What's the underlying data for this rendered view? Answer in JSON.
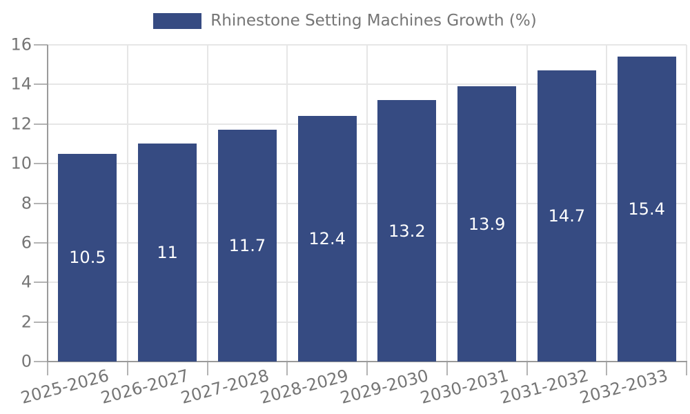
{
  "legend": {
    "label": "Rhinestone Setting Machines Growth (%)"
  },
  "colors": {
    "bar": "#364b82",
    "value_label": "#ffffff",
    "legend_text": "#757575",
    "tick_text": "#757575",
    "grid": "#e6e6e6",
    "axis": "#9a9a9a",
    "tick_mark": "#b3b3b3",
    "background": "#ffffff"
  },
  "chart_data": {
    "type": "bar",
    "title": "Rhinestone Setting Machines Growth (%)",
    "categories": [
      "2025-2026",
      "2026-2027",
      "2027-2028",
      "2028-2029",
      "2029-2030",
      "2030-2031",
      "2031-2032",
      "2032-2033"
    ],
    "values": [
      10.5,
      11,
      11.7,
      12.4,
      13.2,
      13.9,
      14.7,
      15.4
    ],
    "value_labels": [
      "10.5",
      "11",
      "11.7",
      "12.4",
      "13.2",
      "13.9",
      "14.7",
      "15.4"
    ],
    "xlabel": "",
    "ylabel": "",
    "ylim": [
      0,
      16
    ],
    "yticks": [
      0,
      2,
      4,
      6,
      8,
      10,
      12,
      14,
      16
    ],
    "grid": true,
    "legend_position": "top",
    "value_labels_position": "center-of-bar",
    "xtick_rotation_deg": -15
  }
}
